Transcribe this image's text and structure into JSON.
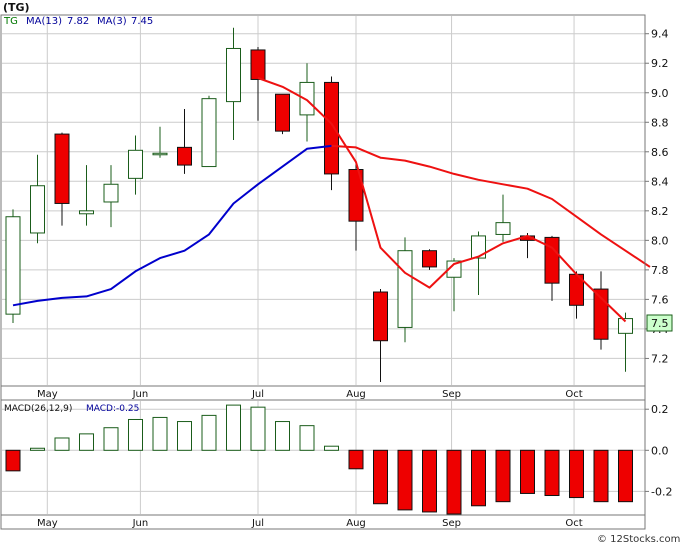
{
  "page_title": "(TG)",
  "footer": "© 12Stocks.com",
  "colors": {
    "up_candle": "#ffffff",
    "down_candle": "#ee0000",
    "candle_border_up": "#1a5c1a",
    "candle_border_down": "#111111",
    "ma_fast": "#0000cc",
    "ma_slow": "#ee1111",
    "grid": "#cccccc",
    "border": "#777777",
    "macd_pos": "#ffffff",
    "macd_neg": "#ee0000",
    "label_ticker": "#007700",
    "label_ma": "#000099",
    "last_price_fill": "#ccffcc"
  },
  "chart_data": [
    {
      "type": "candlestick",
      "legend": {
        "ticker": "TG",
        "ma13_label": "MA(13)",
        "ma13_value": "7.82",
        "ma3_label": "MA(3)",
        "ma3_value": "7.45",
        "placement": "top-left"
      },
      "last_price_label": "7.5",
      "y_ticks": [
        7.2,
        7.4,
        7.6,
        7.8,
        8.0,
        8.2,
        8.4,
        8.6,
        8.8,
        9.0,
        9.2,
        9.4
      ],
      "ylim": [
        7.02,
        9.52
      ],
      "grid": true,
      "x_ticks": [
        {
          "label": "May",
          "bar": 1.4
        },
        {
          "label": "Jun",
          "bar": 5.2
        },
        {
          "label": "Jul",
          "bar": 10.0
        },
        {
          "label": "Aug",
          "bar": 14.0
        },
        {
          "label": "Sep",
          "bar": 17.9
        },
        {
          "label": "Oct",
          "bar": 22.9
        }
      ],
      "candles": [
        {
          "open": 7.5,
          "close": 8.16,
          "high": 8.21,
          "low": 7.44
        },
        {
          "open": 8.05,
          "close": 8.37,
          "high": 8.58,
          "low": 7.98
        },
        {
          "open": 8.72,
          "close": 8.25,
          "high": 8.73,
          "low": 8.1
        },
        {
          "open": 8.18,
          "close": 8.2,
          "high": 8.51,
          "low": 8.1
        },
        {
          "open": 8.26,
          "close": 8.38,
          "high": 8.51,
          "low": 8.09
        },
        {
          "open": 8.42,
          "close": 8.61,
          "high": 8.71,
          "low": 8.31
        },
        {
          "open": 8.58,
          "close": 8.59,
          "high": 8.77,
          "low": 8.56
        },
        {
          "open": 8.63,
          "close": 8.51,
          "high": 8.89,
          "low": 8.45
        },
        {
          "open": 8.5,
          "close": 8.96,
          "high": 8.98,
          "low": 8.5
        },
        {
          "open": 8.94,
          "close": 9.3,
          "high": 9.44,
          "low": 8.68
        },
        {
          "open": 9.29,
          "close": 9.09,
          "high": 9.31,
          "low": 8.81
        },
        {
          "open": 8.99,
          "close": 8.74,
          "high": 8.99,
          "low": 8.72
        },
        {
          "open": 8.85,
          "close": 9.07,
          "high": 9.2,
          "low": 8.67
        },
        {
          "open": 9.07,
          "close": 8.45,
          "high": 9.11,
          "low": 8.34
        },
        {
          "open": 8.48,
          "close": 8.13,
          "high": 8.52,
          "low": 7.93
        },
        {
          "open": 7.65,
          "close": 7.32,
          "high": 7.67,
          "low": 7.04
        },
        {
          "open": 7.41,
          "close": 7.93,
          "high": 8.02,
          "low": 7.31
        },
        {
          "open": 7.93,
          "close": 7.82,
          "high": 7.94,
          "low": 7.8
        },
        {
          "open": 7.75,
          "close": 7.86,
          "high": 7.88,
          "low": 7.52
        },
        {
          "open": 7.88,
          "close": 8.03,
          "high": 8.06,
          "low": 7.63
        },
        {
          "open": 8.04,
          "close": 8.12,
          "high": 8.31,
          "low": 7.99
        },
        {
          "open": 8.03,
          "close": 8.0,
          "high": 8.05,
          "low": 7.88
        },
        {
          "open": 8.02,
          "close": 7.71,
          "high": 8.03,
          "low": 7.59
        },
        {
          "open": 7.77,
          "close": 7.56,
          "high": 7.79,
          "low": 7.47
        },
        {
          "open": 7.67,
          "close": 7.33,
          "high": 7.79,
          "low": 7.26
        },
        {
          "open": 7.37,
          "close": 7.47,
          "high": 7.51,
          "low": 7.11
        }
      ],
      "series": [
        {
          "name": "MA(13)",
          "color": "#0000cc",
          "start_bar": 0,
          "values": [
            7.56,
            7.59,
            7.61,
            7.62,
            7.67,
            7.79,
            7.88,
            7.93,
            8.04,
            8.25,
            8.38,
            8.5,
            8.62,
            8.64
          ]
        },
        {
          "name": "MA(3)",
          "color": "#ee1111",
          "start_bar": 10,
          "values": [
            9.1,
            9.04,
            8.95,
            8.79,
            8.53,
            7.95,
            7.78,
            7.68,
            7.84,
            7.89,
            7.98,
            8.03,
            7.95,
            7.77,
            7.61,
            7.45
          ]
        },
        {
          "name": "MA(13) tail",
          "color": "#ee1111",
          "start_bar": 13,
          "values": [
            8.64,
            8.63,
            8.56,
            8.54,
            8.5,
            8.45,
            8.41,
            8.38,
            8.35,
            8.28,
            8.16,
            8.04,
            7.93,
            7.82
          ]
        }
      ]
    },
    {
      "type": "bar",
      "title": "MACD(26,12,9)",
      "value_label": "MACD:-0.25",
      "y_ticks": [
        0.2,
        0.0,
        -0.2
      ],
      "y_tick_labels": [
        "0.2",
        "0.0",
        "-0.2"
      ],
      "ylim": [
        -0.31,
        0.24
      ],
      "grid": true,
      "x_ticks": [
        {
          "label": "May",
          "bar": 1.4
        },
        {
          "label": "Jun",
          "bar": 5.2
        },
        {
          "label": "Jul",
          "bar": 10.0
        },
        {
          "label": "Aug",
          "bar": 14.0
        },
        {
          "label": "Sep",
          "bar": 17.9
        },
        {
          "label": "Oct",
          "bar": 22.9
        }
      ],
      "values": [
        -0.1,
        0.01,
        0.06,
        0.08,
        0.11,
        0.15,
        0.16,
        0.14,
        0.17,
        0.22,
        0.21,
        0.14,
        0.12,
        0.02,
        -0.09,
        -0.26,
        -0.29,
        -0.3,
        -0.31,
        -0.27,
        -0.25,
        -0.21,
        -0.22,
        -0.23,
        -0.25,
        -0.25
      ]
    }
  ]
}
